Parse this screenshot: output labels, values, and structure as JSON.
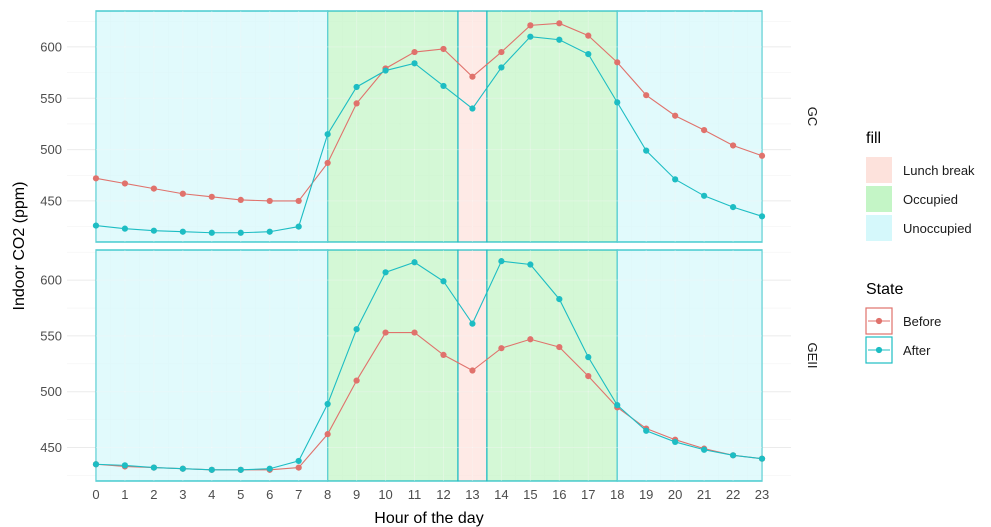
{
  "chart_data": {
    "type": "line",
    "xlabel": "Hour of the day",
    "ylabel": "Indoor CO2 (ppm)",
    "x": [
      0,
      1,
      2,
      3,
      4,
      5,
      6,
      7,
      8,
      9,
      10,
      11,
      12,
      13,
      14,
      15,
      16,
      17,
      18,
      19,
      20,
      21,
      22,
      23
    ],
    "x_tick_labels": [
      "0",
      "1",
      "2",
      "3",
      "4",
      "5",
      "6",
      "7",
      "8",
      "9",
      "10",
      "11",
      "12",
      "13",
      "14",
      "15",
      "16",
      "17",
      "18",
      "19",
      "20",
      "21",
      "22",
      "23"
    ],
    "grid": true,
    "shading": {
      "legend_title": "fill",
      "entries": [
        {
          "name": "Lunch break",
          "color": "#FDE2DC"
        },
        {
          "name": "Occupied",
          "color": "#C4F5C6"
        },
        {
          "name": "Unoccupied",
          "color": "#D5F8FB"
        }
      ],
      "regions": [
        {
          "name": "Unoccupied",
          "x0": 0,
          "x1": 8
        },
        {
          "name": "Occupied",
          "x0": 8,
          "x1": 12.5
        },
        {
          "name": "Lunch break",
          "x0": 12.5,
          "x1": 13.5
        },
        {
          "name": "Occupied",
          "x0": 13.5,
          "x1": 18
        },
        {
          "name": "Unoccupied",
          "x0": 18,
          "x1": 23
        }
      ]
    },
    "legend": {
      "title": "State",
      "entries": [
        {
          "name": "Before",
          "color": "#E0726C"
        },
        {
          "name": "After",
          "color": "#1DBDC3"
        }
      ]
    },
    "panels": [
      {
        "strip": "GC",
        "ylim": [
          410,
          635
        ],
        "yticks": [
          450,
          500,
          550,
          600
        ],
        "ytick_labels": [
          "450",
          "500",
          "550",
          "600"
        ],
        "series": [
          {
            "name": "Before",
            "color": "#E0726C",
            "values": [
              472,
              467,
              462,
              457,
              454,
              451,
              450,
              450,
              487,
              545,
              579,
              595,
              598,
              571,
              595,
              621,
              623,
              611,
              585,
              553,
              533,
              519,
              504,
              494
            ]
          },
          {
            "name": "After",
            "color": "#1DBDC3",
            "values": [
              426,
              423,
              421,
              420,
              419,
              419,
              420,
              425,
              515,
              561,
              577,
              584,
              562,
              540,
              580,
              610,
              607,
              593,
              546,
              499,
              471,
              455,
              444,
              435
            ]
          }
        ]
      },
      {
        "strip": "GEII",
        "ylim": [
          420,
          627
        ],
        "yticks": [
          450,
          500,
          550,
          600
        ],
        "ytick_labels": [
          "450",
          "500",
          "550",
          "600"
        ],
        "series": [
          {
            "name": "Before",
            "color": "#E0726C",
            "values": [
              435,
              433,
              432,
              431,
              430,
              430,
              430,
              432,
              462,
              510,
              553,
              553,
              533,
              519,
              539,
              547,
              540,
              514,
              486,
              467,
              457,
              449,
              443,
              440
            ]
          },
          {
            "name": "After",
            "color": "#1DBDC3",
            "values": [
              435,
              434,
              432,
              431,
              430,
              430,
              431,
              438,
              489,
              556,
              607,
              616,
              599,
              561,
              617,
              614,
              583,
              531,
              488,
              465,
              455,
              448,
              443,
              440
            ]
          }
        ]
      }
    ]
  }
}
